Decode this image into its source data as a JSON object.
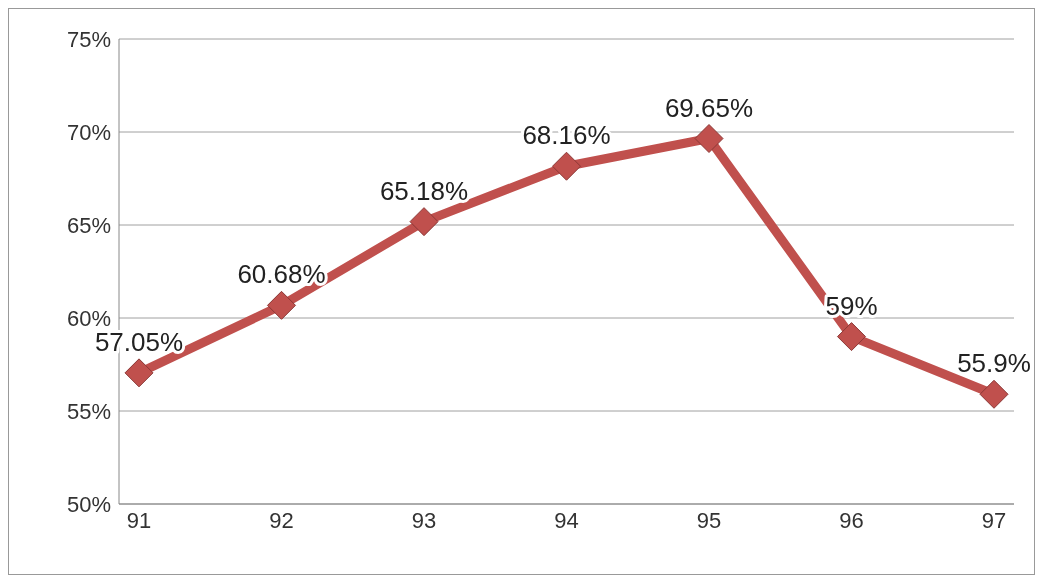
{
  "chart_data": {
    "type": "line",
    "categories": [
      "91",
      "92",
      "93",
      "94",
      "95",
      "96",
      "97"
    ],
    "series": [
      {
        "color": "#c0504d",
        "values": [
          57.05,
          60.68,
          65.18,
          68.16,
          69.65,
          59,
          55.9
        ],
        "value_labels": [
          "57.05%",
          "60.68%",
          "65.18%",
          "68.16%",
          "69.65%",
          "59%",
          "55.9%"
        ]
      }
    ],
    "ylim": [
      50,
      75
    ],
    "yticks": [
      {
        "value": 50,
        "label": "50%"
      },
      {
        "value": 55,
        "label": "55%"
      },
      {
        "value": 60,
        "label": "60%"
      },
      {
        "value": 65,
        "label": "65%"
      },
      {
        "value": 70,
        "label": "70%"
      },
      {
        "value": 75,
        "label": "75%"
      }
    ],
    "grid": "y",
    "marker": "diamond",
    "line_style": "solid",
    "legend": false
  }
}
